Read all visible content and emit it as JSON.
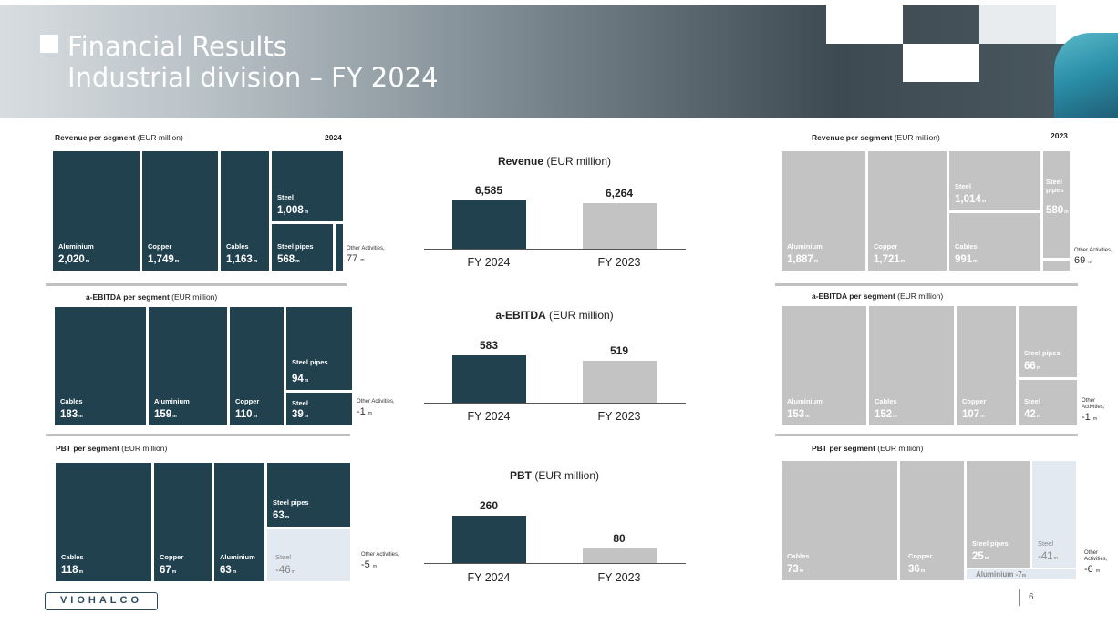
{
  "header": {
    "title": "Financial Results",
    "subtitle": "Industrial division – FY 2024"
  },
  "revenue_section": {
    "left_label": "Revenue per segment",
    "unit": "(EUR million)",
    "left_year": "2024",
    "right_label": "Revenue per segment",
    "right_year": "2023",
    "tiles_2024": [
      {
        "name": "Aluminium",
        "value": "2,020"
      },
      {
        "name": "Copper",
        "value": "1,749"
      },
      {
        "name": "Cables",
        "value": "1,163"
      },
      {
        "name": "Steel",
        "value": "1,008"
      },
      {
        "name": "Steel pipes",
        "value": "568"
      }
    ],
    "other_2024": {
      "label": "Other Activities,",
      "value": "77"
    },
    "tiles_2023": [
      {
        "name": "Aluminium",
        "value": "1,887"
      },
      {
        "name": "Copper",
        "value": "1,721"
      },
      {
        "name": "Steel",
        "value": "1,014"
      },
      {
        "name": "Cables",
        "value": "991"
      },
      {
        "name": "Steel pipes",
        "value": "580"
      }
    ],
    "other_2023": {
      "label": "Other Activities,",
      "value": "69"
    }
  },
  "ebitda_section": {
    "left_label": "a-EBITDA per segment",
    "unit": "(EUR million)",
    "right_label": "a-EBITDA per segment",
    "tiles_2024": [
      {
        "name": "Cables",
        "value": "183"
      },
      {
        "name": "Aluminium",
        "value": "159"
      },
      {
        "name": "Copper",
        "value": "110"
      },
      {
        "name": "Steel pipes",
        "value": "94"
      },
      {
        "name": "Steel",
        "value": "39"
      }
    ],
    "other_2024": {
      "label": "Other Activities,",
      "value": "-1"
    },
    "tiles_2023": [
      {
        "name": "Aluminium",
        "value": "153"
      },
      {
        "name": "Cables",
        "value": "152"
      },
      {
        "name": "Copper",
        "value": "107"
      },
      {
        "name": "Steel pipes",
        "value": "66"
      },
      {
        "name": "Steel",
        "value": "42"
      }
    ],
    "other_2023": {
      "label": "Other Activities,",
      "value": "-1"
    }
  },
  "pbt_section": {
    "left_label": "PBT per segment",
    "unit": "(EUR million)",
    "right_label": "PBT per segment",
    "tiles_2024": [
      {
        "name": "Cables",
        "value": "118"
      },
      {
        "name": "Copper",
        "value": "67"
      },
      {
        "name": "Aluminium",
        "value": "63"
      },
      {
        "name": "Steel pipes",
        "value": "63"
      },
      {
        "name": "Steel",
        "value": "-46"
      }
    ],
    "other_2024": {
      "label": "Other Activities,",
      "value": "-5"
    },
    "tiles_2023": [
      {
        "name": "Cables",
        "value": "73"
      },
      {
        "name": "Copper",
        "value": "36"
      },
      {
        "name": "Steel pipes",
        "value": "25"
      },
      {
        "name": "Steel",
        "value": "-41"
      },
      {
        "name": "Aluminium",
        "value": "-7"
      }
    ],
    "other_2023": {
      "label": "Other Activities,",
      "value": "-6"
    }
  },
  "unit_suffix": "m",
  "chart_data": [
    {
      "type": "bar",
      "title": "Revenue",
      "title_unit": "(EUR million)",
      "categories": [
        "FY 2024",
        "FY 2023"
      ],
      "values": [
        6585,
        6264
      ],
      "value_labels": [
        "6,585",
        "6,264"
      ],
      "colors": [
        "#21414f",
        "#c3c3c3"
      ]
    },
    {
      "type": "bar",
      "title": "a-EBITDA",
      "title_unit": "(EUR million)",
      "categories": [
        "FY 2024",
        "FY 2023"
      ],
      "values": [
        583,
        519
      ],
      "value_labels": [
        "583",
        "519"
      ],
      "colors": [
        "#21414f",
        "#c3c3c3"
      ]
    },
    {
      "type": "bar",
      "title": "PBT",
      "title_unit": "(EUR million)",
      "categories": [
        "FY 2024",
        "FY 2023"
      ],
      "values": [
        260,
        80
      ],
      "value_labels": [
        "260",
        "80"
      ],
      "colors": [
        "#21414f",
        "#c3c3c3"
      ]
    }
  ],
  "footer": {
    "logo": "VIOHALCO",
    "page": "6"
  }
}
